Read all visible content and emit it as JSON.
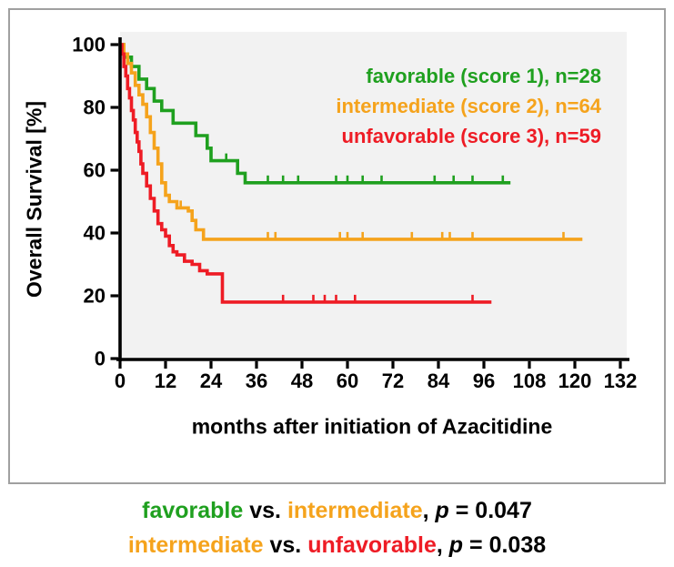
{
  "colors": {
    "favorable": "#1FA01F",
    "intermediate": "#F5A31C",
    "unfavorable": "#EE1C25",
    "axis": "#000000",
    "plot_bg": "#F2F2F2",
    "panel_border": "#A0A0A0"
  },
  "chart_data": {
    "type": "line",
    "subtype": "kaplan-meier-step",
    "title": "",
    "xlabel": "months after initiation of Azacitidine",
    "ylabel": "Overall Survival [%]",
    "xlim": [
      0,
      132
    ],
    "ylim": [
      0,
      100
    ],
    "x_ticks": [
      0,
      12,
      24,
      36,
      48,
      60,
      72,
      84,
      96,
      108,
      120,
      132
    ],
    "y_ticks": [
      0,
      20,
      40,
      60,
      80,
      100
    ],
    "grid": false,
    "legend_position": "top-right-inside",
    "series": [
      {
        "name": "favorable",
        "score": 1,
        "n": 28,
        "label": "favorable (score 1), n=28",
        "color_key": "favorable",
        "points": [
          [
            0,
            100
          ],
          [
            1,
            96
          ],
          [
            3,
            93
          ],
          [
            5,
            89
          ],
          [
            7,
            86
          ],
          [
            9,
            82
          ],
          [
            11,
            79
          ],
          [
            14,
            75
          ],
          [
            20,
            71
          ],
          [
            23,
            67
          ],
          [
            24,
            63
          ],
          [
            31,
            59
          ],
          [
            33,
            56
          ],
          [
            103,
            56
          ]
        ],
        "censors": [
          [
            28,
            63
          ],
          [
            39,
            56
          ],
          [
            43,
            56
          ],
          [
            47,
            56
          ],
          [
            57,
            56
          ],
          [
            60,
            56
          ],
          [
            64,
            56
          ],
          [
            69,
            56
          ],
          [
            83,
            56
          ],
          [
            88,
            56
          ],
          [
            93,
            56
          ],
          [
            101,
            56
          ]
        ]
      },
      {
        "name": "intermediate",
        "score": 2,
        "n": 64,
        "label": "intermediate (score 2), n=64",
        "color_key": "intermediate",
        "points": [
          [
            0,
            100
          ],
          [
            1,
            97
          ],
          [
            2,
            94
          ],
          [
            3,
            91
          ],
          [
            4,
            87
          ],
          [
            5,
            84
          ],
          [
            6,
            81
          ],
          [
            7,
            77
          ],
          [
            8,
            72
          ],
          [
            9,
            67
          ],
          [
            10,
            62
          ],
          [
            11,
            56
          ],
          [
            12,
            52
          ],
          [
            13,
            50
          ],
          [
            15,
            48
          ],
          [
            18,
            47
          ],
          [
            19,
            44
          ],
          [
            20,
            41
          ],
          [
            22,
            38
          ],
          [
            122,
            38
          ]
        ],
        "censors": [
          [
            16,
            48
          ],
          [
            39,
            38
          ],
          [
            41,
            38
          ],
          [
            58,
            38
          ],
          [
            60,
            38
          ],
          [
            64,
            38
          ],
          [
            77,
            38
          ],
          [
            85,
            38
          ],
          [
            87,
            38
          ],
          [
            93,
            38
          ],
          [
            117,
            38
          ]
        ]
      },
      {
        "name": "unfavorable",
        "score": 3,
        "n": 59,
        "label": "unfavorable (score 3), n=59",
        "color_key": "unfavorable",
        "points": [
          [
            0,
            100
          ],
          [
            0.5,
            97
          ],
          [
            1,
            93
          ],
          [
            1.5,
            90
          ],
          [
            2,
            86
          ],
          [
            2.5,
            83
          ],
          [
            3,
            79
          ],
          [
            3.5,
            76
          ],
          [
            4,
            72
          ],
          [
            4.5,
            69
          ],
          [
            5,
            66
          ],
          [
            5.5,
            62
          ],
          [
            6,
            59
          ],
          [
            7,
            55
          ],
          [
            8,
            51
          ],
          [
            9,
            47
          ],
          [
            10,
            43
          ],
          [
            11,
            41
          ],
          [
            12,
            39
          ],
          [
            13,
            36
          ],
          [
            14,
            34
          ],
          [
            15,
            33
          ],
          [
            17,
            31
          ],
          [
            19,
            30
          ],
          [
            21,
            28
          ],
          [
            23,
            27
          ],
          [
            27,
            18
          ],
          [
            98,
            18
          ]
        ],
        "censors": [
          [
            43,
            18
          ],
          [
            51,
            18
          ],
          [
            54,
            18
          ],
          [
            57,
            18
          ],
          [
            62,
            18
          ],
          [
            93,
            18
          ]
        ]
      }
    ]
  },
  "stats_lines": [
    {
      "segments": [
        {
          "text": "favorable",
          "color": "favorable"
        },
        {
          "text": " vs. "
        },
        {
          "text": "intermediate",
          "color": "intermediate"
        },
        {
          "text": ", "
        },
        {
          "text": "p",
          "italic": true
        },
        {
          "text": " = 0.047"
        }
      ]
    },
    {
      "segments": [
        {
          "text": "intermediate",
          "color": "intermediate"
        },
        {
          "text": " vs. "
        },
        {
          "text": "unfavorable",
          "color": "unfavorable"
        },
        {
          "text": ", "
        },
        {
          "text": "p",
          "italic": true
        },
        {
          "text": " = 0.038"
        }
      ]
    }
  ]
}
